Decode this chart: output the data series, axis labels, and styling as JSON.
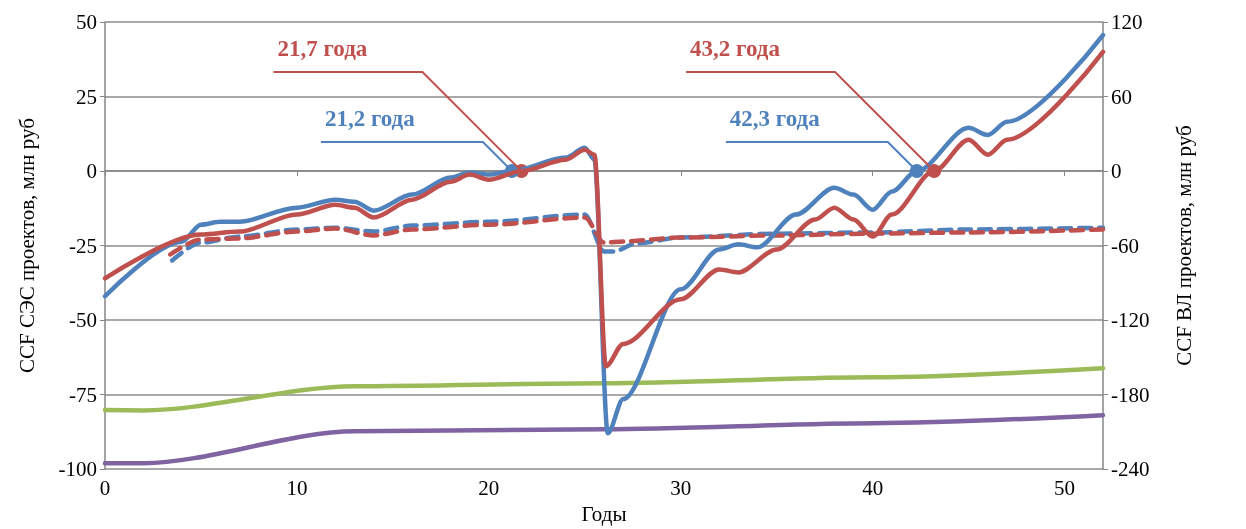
{
  "chart_data": {
    "type": "line",
    "xlabel": "Годы",
    "ylabel": "CCF СЭС проектов, млн руб",
    "y2label": "CCF ВЛ проектов, млн руб",
    "xlim": [
      0,
      52
    ],
    "xticks": [
      0,
      10,
      20,
      30,
      40,
      50
    ],
    "ylim": [
      -100,
      50
    ],
    "yticks": [
      -100,
      -75,
      -50,
      -25,
      0,
      25,
      50
    ],
    "y2lim": [
      -240,
      120
    ],
    "y2ticks": [
      -240,
      -180,
      -120,
      -60,
      0,
      60,
      120
    ],
    "grid": "y",
    "marker": "none",
    "annotations": [
      {
        "text": "21,7 года",
        "x": 21.7,
        "y": 0
      },
      {
        "text": "21,2 года",
        "x": 21.2,
        "y": 0
      },
      {
        "text": "43,2 года",
        "x": 43.2,
        "y": 0
      },
      {
        "text": "42,3 года",
        "x": 42.3,
        "y": 0
      }
    ],
    "series": [
      {
        "color": "#c0504d",
        "line_style": "solid",
        "x": [
          0,
          5,
          7,
          10,
          12,
          13,
          14,
          16,
          18,
          19,
          20,
          21.7,
          24,
          25,
          25.5,
          26.1,
          27,
          30,
          32,
          33,
          35,
          37,
          38,
          39,
          40,
          41,
          43.2,
          45,
          46,
          47,
          52
        ],
        "values": [
          -36,
          -21.3,
          -20.3,
          -14.6,
          -11.3,
          -12.3,
          -15.6,
          -9.6,
          -3.6,
          -1.2,
          -2.9,
          0,
          3.8,
          7.1,
          5.5,
          -65.5,
          -58,
          -43,
          -33,
          -34,
          -26.3,
          -16.3,
          -12.3,
          -16.3,
          -22,
          -14.6,
          0,
          10.5,
          5.5,
          10.5,
          40
        ]
      },
      {
        "color": "#4f81bd",
        "line_style": "solid",
        "x": [
          0,
          4,
          5,
          6,
          7,
          10,
          12,
          13,
          14,
          16,
          18,
          19,
          20,
          21.2,
          24,
          25,
          25.5,
          26.2,
          27,
          30,
          32,
          33,
          34,
          36,
          38,
          39,
          40,
          41,
          42.3,
          45,
          46,
          47,
          52
        ],
        "values": [
          -42,
          -23.7,
          -18,
          -17,
          -17,
          -12.3,
          -9.6,
          -10.3,
          -13.3,
          -7.9,
          -2.2,
          -0.5,
          -1.2,
          0,
          4.5,
          7.8,
          3.8,
          -88,
          -76.5,
          -39.7,
          -26.3,
          -24.6,
          -25.6,
          -14.6,
          -5.6,
          -7.9,
          -13,
          -6.9,
          0,
          14.5,
          12.1,
          16.5,
          45.6
        ]
      },
      {
        "color": "#c0504d",
        "line_style": "dashed",
        "x": [
          3.4,
          5,
          7,
          10,
          12,
          14,
          16,
          20,
          25,
          26,
          27,
          30,
          35,
          40,
          45,
          52
        ],
        "values": [
          -28,
          -23,
          -22.6,
          -20.3,
          -19.3,
          -21.6,
          -19.6,
          -18,
          -15.6,
          -24,
          -23.6,
          -22.3,
          -21.6,
          -21,
          -20.6,
          -19.6
        ]
      },
      {
        "color": "#4f81bd",
        "line_style": "dashed",
        "x": [
          3.5,
          5,
          7,
          10,
          12,
          14,
          16,
          20,
          25,
          26,
          26.5,
          27.7,
          30,
          35,
          40,
          45,
          52
        ],
        "values": [
          -30,
          -24,
          -22,
          -19.6,
          -19,
          -20.3,
          -18.3,
          -17,
          -14.6,
          -27,
          -27,
          -24.3,
          -22.3,
          -21,
          -20.6,
          -19.6,
          -19
        ]
      },
      {
        "color": "#9bbb59",
        "line_style": "solid",
        "x": [
          0,
          2,
          13,
          26,
          40,
          52
        ],
        "values": [
          -80.2,
          -80.3,
          -72.2,
          -71.2,
          -69.2,
          -66.2
        ]
      },
      {
        "color": "#8064a2",
        "line_style": "solid",
        "x": [
          0,
          2,
          13,
          26,
          40,
          52
        ],
        "values": [
          -98,
          -98,
          -87.3,
          -86.6,
          -84.6,
          -81.9
        ]
      }
    ]
  }
}
